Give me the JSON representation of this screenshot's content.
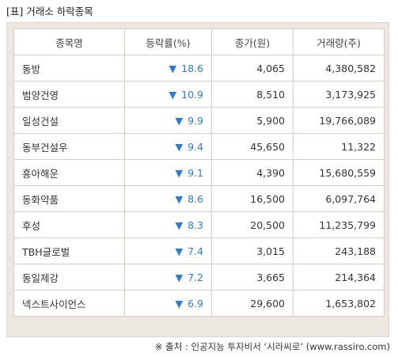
{
  "caption": "[표] 거래소 하락종목",
  "table": {
    "headers": [
      "종목명",
      "등락률(%)",
      "종가(원)",
      "거래량(주)"
    ],
    "down_symbol": "▼",
    "rows": [
      {
        "name": "동방",
        "change": "18.6",
        "close": "4,065",
        "volume": "4,380,582"
      },
      {
        "name": "범양건영",
        "change": "10.9",
        "close": "8,510",
        "volume": "3,173,925"
      },
      {
        "name": "일성건설",
        "change": "9.9",
        "close": "5,900",
        "volume": "19,766,089"
      },
      {
        "name": "동부건설우",
        "change": "9.4",
        "close": "45,650",
        "volume": "11,322"
      },
      {
        "name": "흥아해운",
        "change": "9.1",
        "close": "4,390",
        "volume": "15,680,559"
      },
      {
        "name": "동화약품",
        "change": "8.6",
        "close": "16,500",
        "volume": "6,097,764"
      },
      {
        "name": "후성",
        "change": "8.3",
        "close": "20,500",
        "volume": "11,235,799"
      },
      {
        "name": "TBH글로벌",
        "change": "7.4",
        "close": "3,015",
        "volume": "243,188"
      },
      {
        "name": "동일제강",
        "change": "7.2",
        "close": "3,665",
        "volume": "214,364"
      },
      {
        "name": "넥스트사이언스",
        "change": "6.9",
        "close": "29,600",
        "volume": "1,653,802"
      }
    ]
  },
  "source": "※ 출처 : 인공지능 투자비서 ‘시라씨로’ (www.rassiro.com)",
  "colors": {
    "down": "#2b7bd3",
    "frame_bg": "#ece7e0",
    "grid": "#d4cec6"
  }
}
